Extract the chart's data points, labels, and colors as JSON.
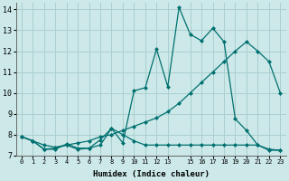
{
  "xlabel": "Humidex (Indice chaleur)",
  "bg_color": "#cce8e8",
  "grid_color": "#aacfcf",
  "line_color": "#007070",
  "xlim_min": -0.5,
  "xlim_max": 23.5,
  "ylim_min": 7.0,
  "ylim_max": 14.3,
  "xticks": [
    0,
    1,
    2,
    3,
    4,
    5,
    6,
    7,
    8,
    9,
    10,
    11,
    12,
    13,
    15,
    16,
    17,
    18,
    19,
    20,
    21,
    22,
    23
  ],
  "yticks": [
    7,
    8,
    9,
    10,
    11,
    12,
    13,
    14
  ],
  "series": [
    {
      "x": [
        0,
        1,
        2,
        3,
        4,
        5,
        6,
        7,
        8,
        9,
        10,
        11,
        12,
        13,
        14,
        15,
        16,
        17,
        18,
        19,
        20,
        21,
        22,
        23
      ],
      "y": [
        7.9,
        7.7,
        7.3,
        7.35,
        7.5,
        7.3,
        7.35,
        7.75,
        8.3,
        7.6,
        10.1,
        10.25,
        12.1,
        10.3,
        14.1,
        12.8,
        12.5,
        13.1,
        12.45,
        8.75,
        8.2,
        7.5,
        7.25,
        7.25
      ]
    },
    {
      "x": [
        0,
        1,
        2,
        3,
        4,
        5,
        6,
        7,
        8,
        9,
        10,
        11,
        12,
        13,
        14,
        15,
        16,
        17,
        18,
        19,
        20,
        21,
        22,
        23
      ],
      "y": [
        7.9,
        7.7,
        7.5,
        7.4,
        7.5,
        7.6,
        7.7,
        7.9,
        8.0,
        8.2,
        8.4,
        8.6,
        8.8,
        9.1,
        9.5,
        10.0,
        10.5,
        11.0,
        11.5,
        12.0,
        12.45,
        12.0,
        11.5,
        10.0
      ]
    },
    {
      "x": [
        0,
        1,
        2,
        3,
        4,
        5,
        6,
        7,
        8,
        9,
        10,
        11,
        12,
        13,
        14,
        15,
        16,
        17,
        18,
        19,
        20,
        21,
        22,
        23
      ],
      "y": [
        7.9,
        7.7,
        7.3,
        7.3,
        7.55,
        7.35,
        7.35,
        7.5,
        8.3,
        8.0,
        7.7,
        7.5,
        7.5,
        7.5,
        7.5,
        7.5,
        7.5,
        7.5,
        7.5,
        7.5,
        7.5,
        7.5,
        7.3,
        7.25
      ]
    }
  ],
  "marker": "D",
  "markersize": 2.0,
  "linewidth": 0.9
}
